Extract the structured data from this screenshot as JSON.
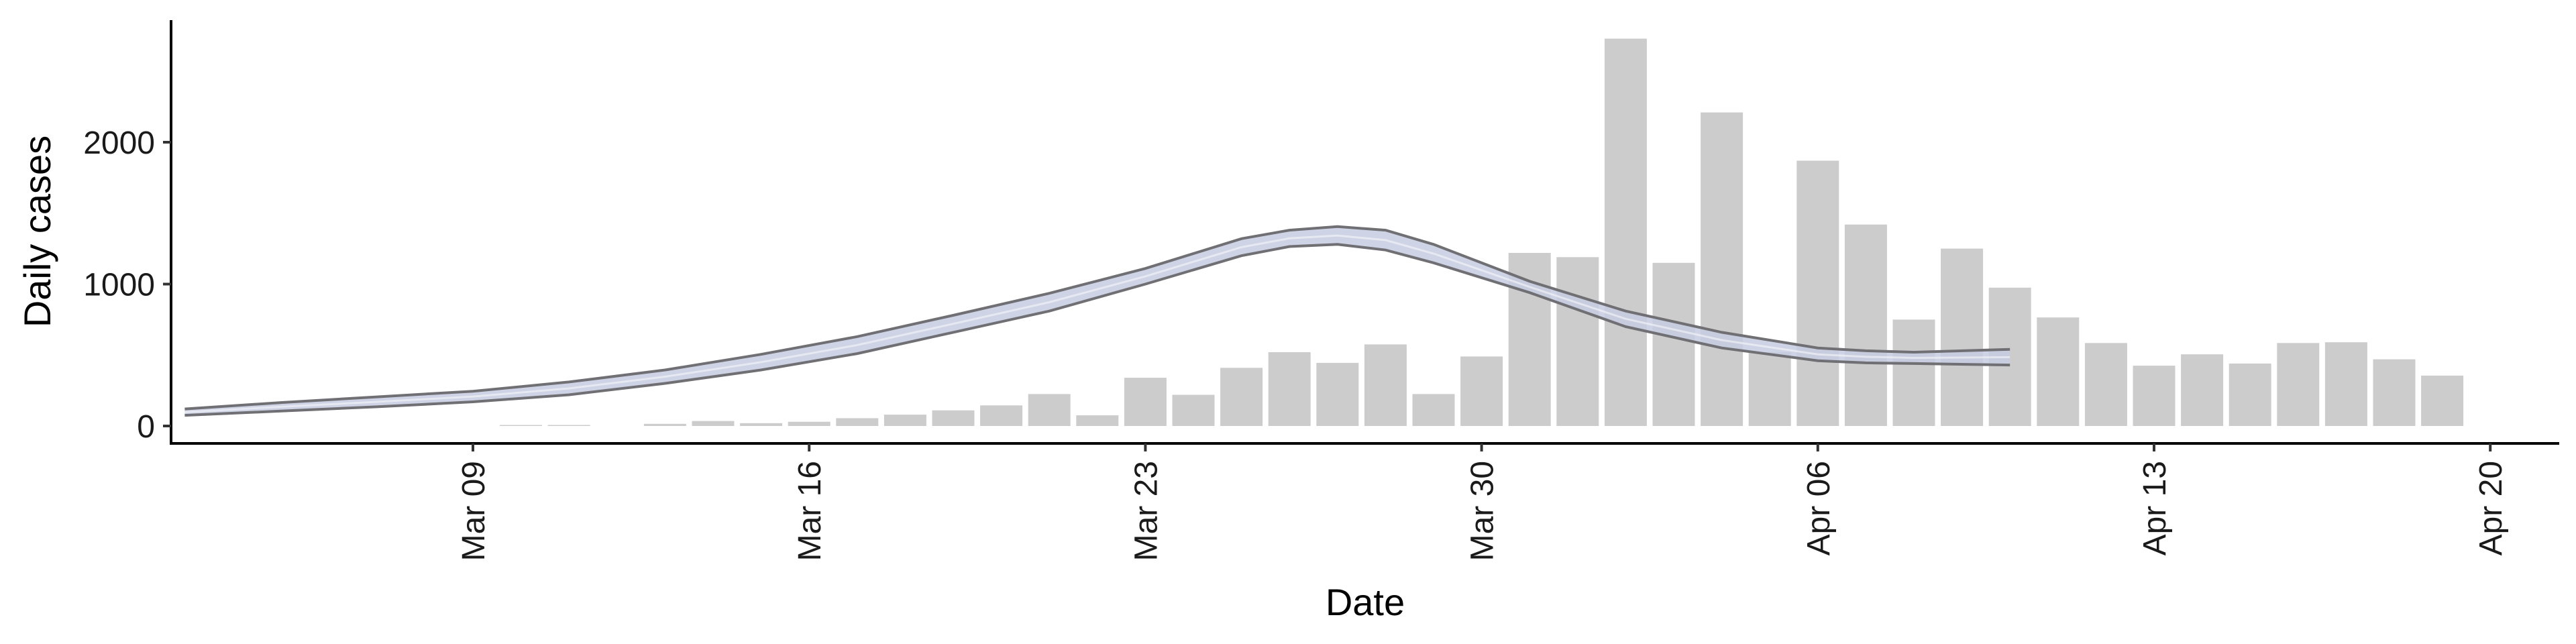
{
  "chart_data": {
    "type": "bar",
    "xlabel": "Date",
    "ylabel": "Daily cases",
    "x_range": [
      "2020-03-01",
      "2020-04-21"
    ],
    "ylim": [
      -120,
      2900
    ],
    "y_ticks": [
      0,
      1000,
      2000
    ],
    "y_tick_labels": [
      "0",
      "1000",
      "2000"
    ],
    "x_ticks": [
      "2020-03-09",
      "2020-03-16",
      "2020-03-23",
      "2020-03-30",
      "2020-04-06",
      "2020-04-13",
      "2020-04-20"
    ],
    "x_tick_labels": [
      "Mar 09",
      "Mar 16",
      "Mar 23",
      "Mar 30",
      "Apr 06",
      "Apr 13",
      "Apr 20"
    ],
    "grid": false,
    "colors": {
      "bars": "#cccccc",
      "band": "#c5cbe0",
      "band_edge": "#6f6f74"
    },
    "bars": [
      {
        "date": "2020-03-10",
        "value": 2
      },
      {
        "date": "2020-03-11",
        "value": 3
      },
      {
        "date": "2020-03-13",
        "value": 15
      },
      {
        "date": "2020-03-14",
        "value": 35
      },
      {
        "date": "2020-03-15",
        "value": 20
      },
      {
        "date": "2020-03-16",
        "value": 30
      },
      {
        "date": "2020-03-17",
        "value": 55
      },
      {
        "date": "2020-03-18",
        "value": 80
      },
      {
        "date": "2020-03-19",
        "value": 110
      },
      {
        "date": "2020-03-20",
        "value": 145
      },
      {
        "date": "2020-03-21",
        "value": 225
      },
      {
        "date": "2020-03-22",
        "value": 75
      },
      {
        "date": "2020-03-23",
        "value": 340
      },
      {
        "date": "2020-03-24",
        "value": 220
      },
      {
        "date": "2020-03-25",
        "value": 410
      },
      {
        "date": "2020-03-26",
        "value": 520
      },
      {
        "date": "2020-03-27",
        "value": 445
      },
      {
        "date": "2020-03-28",
        "value": 575
      },
      {
        "date": "2020-03-29",
        "value": 225
      },
      {
        "date": "2020-03-30",
        "value": 490
      },
      {
        "date": "2020-03-31",
        "value": 1220
      },
      {
        "date": "2020-04-01",
        "value": 1190
      },
      {
        "date": "2020-04-02",
        "value": 2730
      },
      {
        "date": "2020-04-03",
        "value": 1150
      },
      {
        "date": "2020-04-04",
        "value": 2210
      },
      {
        "date": "2020-04-05",
        "value": 520
      },
      {
        "date": "2020-04-06",
        "value": 1870
      },
      {
        "date": "2020-04-07",
        "value": 1420
      },
      {
        "date": "2020-04-08",
        "value": 750
      },
      {
        "date": "2020-04-09",
        "value": 1250
      },
      {
        "date": "2020-04-10",
        "value": 975
      },
      {
        "date": "2020-04-11",
        "value": 765
      },
      {
        "date": "2020-04-12",
        "value": 585
      },
      {
        "date": "2020-04-13",
        "value": 425
      },
      {
        "date": "2020-04-14",
        "value": 505
      },
      {
        "date": "2020-04-15",
        "value": 440
      },
      {
        "date": "2020-04-16",
        "value": 585
      },
      {
        "date": "2020-04-17",
        "value": 590
      },
      {
        "date": "2020-04-18",
        "value": 470
      },
      {
        "date": "2020-04-19",
        "value": 355
      }
    ],
    "band": {
      "dates": [
        "2020-03-03",
        "2020-03-05",
        "2020-03-07",
        "2020-03-09",
        "2020-03-11",
        "2020-03-13",
        "2020-03-15",
        "2020-03-17",
        "2020-03-19",
        "2020-03-21",
        "2020-03-23",
        "2020-03-25",
        "2020-03-26",
        "2020-03-27",
        "2020-03-28",
        "2020-03-29",
        "2020-03-31",
        "2020-04-02",
        "2020-04-04",
        "2020-04-06",
        "2020-04-07",
        "2020-04-08",
        "2020-04-10"
      ],
      "upper": [
        120,
        165,
        205,
        245,
        310,
        395,
        505,
        630,
        780,
        935,
        1110,
        1320,
        1380,
        1405,
        1380,
        1280,
        1020,
        810,
        660,
        550,
        530,
        520,
        540
      ],
      "lower": [
        75,
        105,
        135,
        170,
        220,
        300,
        395,
        510,
        660,
        810,
        1000,
        1200,
        1265,
        1280,
        1240,
        1150,
        940,
        700,
        550,
        460,
        445,
        440,
        430
      ]
    }
  }
}
